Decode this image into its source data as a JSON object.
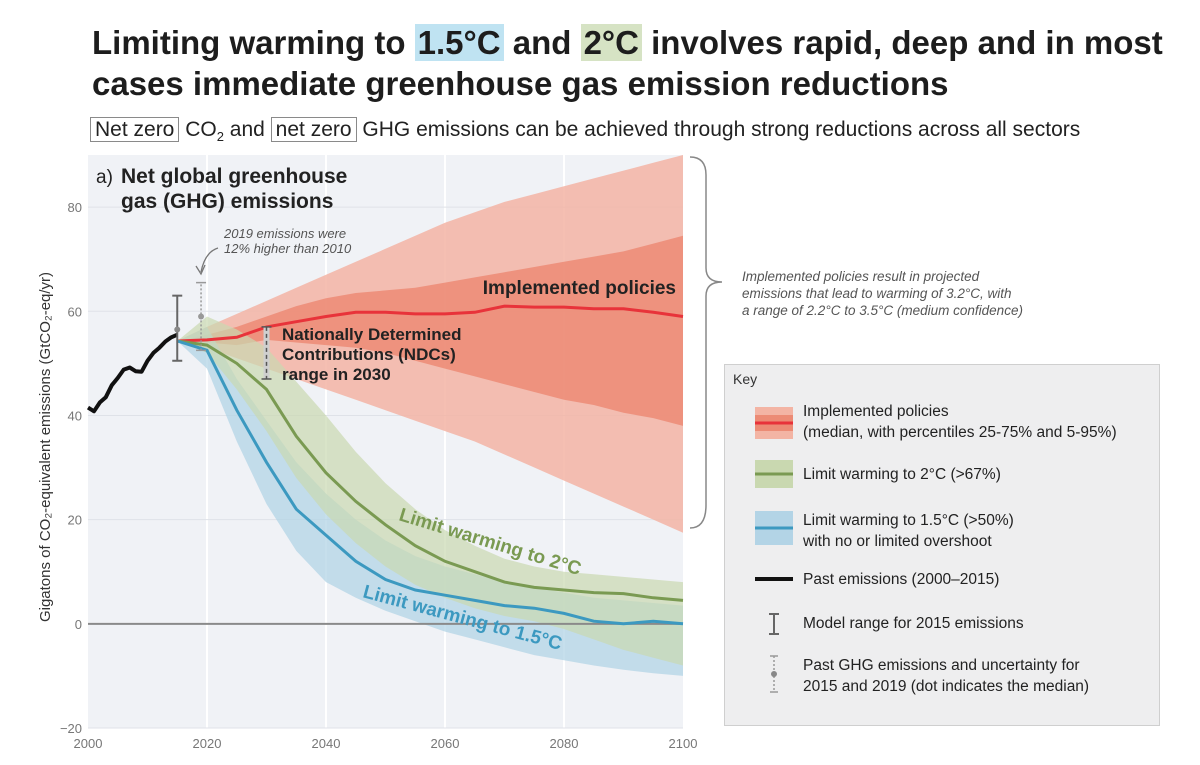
{
  "header": {
    "title_part1": "Limiting warming to ",
    "title_hl1": "1.5°C",
    "title_part2": " and ",
    "title_hl2": "2°C",
    "title_part3": " involves rapid, deep and in most cases immediate greenhouse gas emission reductions",
    "subtitle_box1": "Net zero",
    "subtitle_co2": " CO",
    "subtitle_co2_sub": "2",
    "subtitle_and": " and ",
    "subtitle_box2": "net zero",
    "subtitle_rest": " GHG emissions can be achieved through strong reductions across all sectors"
  },
  "colors": {
    "red": "#e8333a",
    "red_outer": "#f3b4a4",
    "red_inner": "#ec8b75",
    "green": "#7a9a52",
    "green_band": "#c9d8b0",
    "blue": "#3c99c0",
    "blue_band": "#b3d4e6",
    "plot_bg": "#f0f2f6"
  },
  "chart_data": {
    "type": "area",
    "panel_prefix": "a)",
    "title": "Net global greenhouse gas (GHG) emissions",
    "ylabel": "Gigatons of CO₂-equivalent emissions (GtCO₂-eq/yr)",
    "xlim": [
      2000,
      2100
    ],
    "ylim": [
      -20,
      90
    ],
    "xticks": [
      2000,
      2020,
      2040,
      2060,
      2080,
      2100
    ],
    "yticks": [
      -20,
      0,
      20,
      40,
      60,
      80
    ],
    "net_zero_label": "net zero",
    "series": [
      {
        "name": "Past emissions (2000–2015)",
        "x": [
          2000,
          2001,
          2002,
          2003,
          2004,
          2005,
          2006,
          2007,
          2008,
          2009,
          2010,
          2011,
          2012,
          2013,
          2014,
          2015
        ],
        "values": [
          41.5,
          40.8,
          42.5,
          43.5,
          45.8,
          47.2,
          48.8,
          49.2,
          48.5,
          48.4,
          50.5,
          52.0,
          53.0,
          54.2,
          55.0,
          55.5
        ]
      },
      {
        "name": "Implemented policies",
        "x": [
          2015,
          2020,
          2025,
          2030,
          2035,
          2040,
          2045,
          2050,
          2055,
          2060,
          2065,
          2070,
          2075,
          2080,
          2085,
          2090,
          2095,
          2100
        ],
        "values": [
          54.3,
          54.5,
          55.0,
          57.0,
          58.0,
          59.0,
          59.8,
          59.8,
          59.5,
          59.5,
          59.8,
          61.0,
          60.8,
          60.8,
          60.5,
          60.5,
          59.8,
          59.0
        ],
        "p25": [
          54.3,
          54.0,
          53.5,
          54.5,
          54.0,
          53.5,
          53.0,
          52.0,
          50.5,
          49.0,
          47.5,
          46.0,
          44.5,
          43.0,
          42.0,
          40.5,
          39.5,
          38.0
        ],
        "p75": [
          54.3,
          55.5,
          57.0,
          59.0,
          61.0,
          62.5,
          63.5,
          64.0,
          64.5,
          65.5,
          66.5,
          67.5,
          68.5,
          69.5,
          70.5,
          71.5,
          73.0,
          74.5
        ],
        "p5": [
          54.3,
          53.0,
          51.0,
          49.0,
          47.0,
          45.0,
          43.0,
          41.0,
          39.0,
          37.0,
          35.0,
          32.5,
          30.0,
          27.5,
          25.0,
          22.5,
          20.0,
          17.5
        ],
        "p95": [
          54.3,
          57.0,
          59.5,
          62.0,
          64.5,
          67.0,
          69.5,
          72.0,
          74.5,
          77.0,
          79.0,
          81.0,
          82.5,
          84.0,
          85.5,
          87.0,
          88.5,
          90.0
        ]
      },
      {
        "name": "Limit warming to 2°C (>67%)",
        "x": [
          2015,
          2020,
          2025,
          2030,
          2035,
          2040,
          2045,
          2050,
          2055,
          2060,
          2065,
          2070,
          2075,
          2080,
          2085,
          2090,
          2095,
          2100
        ],
        "values": [
          54.3,
          53.5,
          50.0,
          45.0,
          36.0,
          29.0,
          23.5,
          19.0,
          15.0,
          12.0,
          10.0,
          8.0,
          7.0,
          6.5,
          6.0,
          5.8,
          5.0,
          4.5
        ],
        "p_low": [
          54.3,
          52.0,
          45.0,
          37.0,
          28.0,
          21.0,
          15.5,
          11.0,
          7.5,
          5.0,
          3.0,
          1.5,
          0.5,
          -1.0,
          -3.0,
          -5.0,
          -6.5,
          -8.0
        ],
        "p_high": [
          54.3,
          59.0,
          56.5,
          53.0,
          46.5,
          40.0,
          33.0,
          27.0,
          22.0,
          18.0,
          15.0,
          12.5,
          11.0,
          10.0,
          9.5,
          9.0,
          8.5,
          8.0
        ]
      },
      {
        "name": "Limit warming to 1.5°C (>50%) with no or limited overshoot",
        "x": [
          2015,
          2020,
          2025,
          2030,
          2035,
          2040,
          2045,
          2050,
          2055,
          2060,
          2065,
          2070,
          2075,
          2080,
          2085,
          2090,
          2095,
          2100
        ],
        "values": [
          54.3,
          52.5,
          41.0,
          31.0,
          22.0,
          17.0,
          12.0,
          8.5,
          6.5,
          5.5,
          4.5,
          3.5,
          3.0,
          2.0,
          0.5,
          0.0,
          0.5,
          0.0
        ],
        "p_low": [
          54.3,
          49.0,
          35.0,
          23.0,
          14.0,
          8.0,
          5.0,
          2.5,
          0.5,
          -1.5,
          -3.0,
          -4.5,
          -6.0,
          -7.0,
          -8.0,
          -8.8,
          -9.5,
          -10.0
        ],
        "p_high": [
          54.3,
          57.0,
          47.0,
          39.0,
          31.0,
          25.0,
          20.0,
          16.0,
          13.0,
          11.0,
          9.5,
          8.0,
          7.0,
          6.0,
          5.0,
          4.5,
          4.0,
          3.5
        ]
      }
    ],
    "model_range_2015": {
      "x": 2015,
      "low": 50.5,
      "high": 63.0,
      "median": 56.5
    },
    "past_uncertainty_2019": {
      "x": 2019,
      "low": 52.5,
      "high": 65.5,
      "median": 59.0
    },
    "ndc_range_2030": {
      "x": 2030,
      "low": 47.0,
      "high": 57.0
    },
    "labels": {
      "implemented": "Implemented policies",
      "ndc": [
        "Nationally Determined",
        "Contributions (NDCs)",
        "range in 2030"
      ],
      "limit2": "Limit warming to 2°C",
      "limit15": "Limit warming to 1.5°C",
      "note_2019": [
        "2019 emissions were",
        "12% higher than 2010"
      ],
      "brace_note": [
        "Implemented policies result in projected",
        "emissions that lead to warming of 3.2°C, with",
        "a range of 2.2°C to 3.5°C (medium confidence)"
      ]
    },
    "legend": {
      "title": "Key",
      "placement": "bottom-right",
      "items": [
        [
          "Implemented policies",
          "(median, with percentiles 25-75% and 5-95%)"
        ],
        [
          "Limit warming to 2°C (>67%)"
        ],
        [
          "Limit warming to 1.5°C (>50%)",
          "with no or limited overshoot"
        ],
        [
          "Past emissions (2000–2015)"
        ],
        [
          "Model range for 2015 emissions"
        ],
        [
          "Past GHG emissions and uncertainty for",
          "2015 and 2019 (dot indicates the median)"
        ]
      ]
    }
  }
}
